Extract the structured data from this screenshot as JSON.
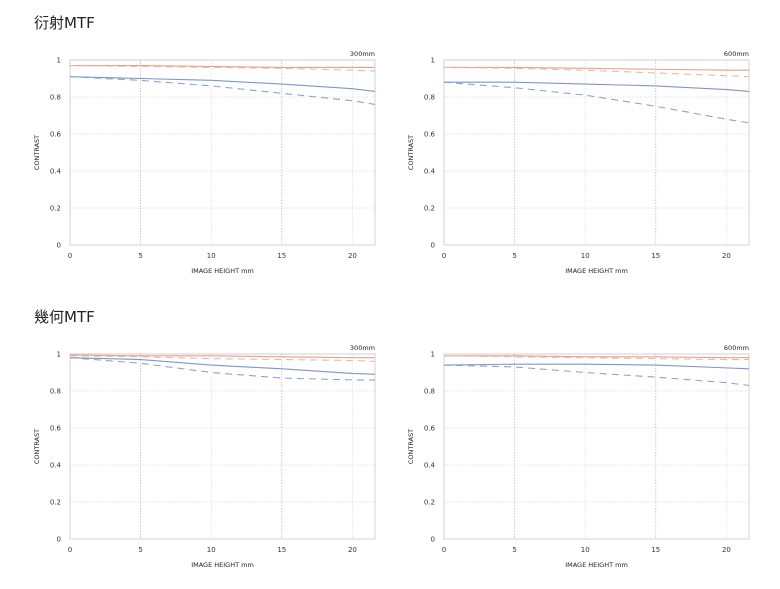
{
  "sections": [
    {
      "title": "衍射MTF"
    },
    {
      "title": "幾何MTF"
    }
  ],
  "chart_data": [
    {
      "type": "line",
      "group": "衍射MTF",
      "corner_label": "300mm",
      "xlabel": "IMAGE HEIGHT  mm",
      "ylabel": "CONTRAST",
      "xlim": [
        0,
        21.6
      ],
      "ylim": [
        0,
        1
      ],
      "xticks": [
        "0",
        "5",
        "10",
        "15",
        "20"
      ],
      "yticks": [
        "0",
        "0.2",
        "0.4",
        "0.6",
        "0.8",
        "1"
      ],
      "series": [
        {
          "color": "#e8a08a",
          "dash": "solid",
          "x": [
            0,
            5,
            10,
            15,
            20,
            21.6
          ],
          "y": [
            0.97,
            0.97,
            0.965,
            0.96,
            0.96,
            0.96
          ]
        },
        {
          "color": "#e8b8a8",
          "dash": "dashed",
          "x": [
            0,
            5,
            10,
            15,
            20,
            21.6
          ],
          "y": [
            0.97,
            0.965,
            0.96,
            0.955,
            0.945,
            0.94
          ]
        },
        {
          "color": "#7f96c8",
          "dash": "solid",
          "x": [
            0,
            5,
            10,
            15,
            20,
            21.6
          ],
          "y": [
            0.91,
            0.9,
            0.89,
            0.87,
            0.845,
            0.83
          ]
        },
        {
          "color": "#8fa3cf",
          "dash": "dashed",
          "x": [
            0,
            5,
            10,
            15,
            20,
            21.6
          ],
          "y": [
            0.91,
            0.89,
            0.86,
            0.82,
            0.78,
            0.76
          ]
        }
      ]
    },
    {
      "type": "line",
      "group": "衍射MTF",
      "corner_label": "600mm",
      "xlabel": "IMAGE HEIGHT  mm",
      "ylabel": "CONTRAST",
      "xlim": [
        0,
        21.6
      ],
      "ylim": [
        0,
        1
      ],
      "xticks": [
        "0",
        "5",
        "10",
        "15",
        "20"
      ],
      "yticks": [
        "0",
        "0.2",
        "0.4",
        "0.6",
        "0.8",
        "1"
      ],
      "series": [
        {
          "color": "#e8a08a",
          "dash": "solid",
          "x": [
            0,
            5,
            10,
            15,
            20,
            21.6
          ],
          "y": [
            0.96,
            0.96,
            0.955,
            0.95,
            0.945,
            0.945
          ]
        },
        {
          "color": "#e8b8a8",
          "dash": "dashed",
          "x": [
            0,
            5,
            10,
            15,
            20,
            21.6
          ],
          "y": [
            0.96,
            0.955,
            0.945,
            0.93,
            0.915,
            0.91
          ]
        },
        {
          "color": "#7f96c8",
          "dash": "solid",
          "x": [
            0,
            5,
            10,
            15,
            20,
            21.6
          ],
          "y": [
            0.88,
            0.88,
            0.87,
            0.86,
            0.84,
            0.83
          ]
        },
        {
          "color": "#8fa3cf",
          "dash": "dashed",
          "x": [
            0,
            5,
            10,
            15,
            20,
            21.6
          ],
          "y": [
            0.88,
            0.85,
            0.81,
            0.75,
            0.68,
            0.66
          ]
        }
      ]
    },
    {
      "type": "line",
      "group": "幾何MTF",
      "corner_label": "300mm",
      "xlabel": "IMAGE HEIGHT  mm",
      "ylabel": "CONTRAST",
      "xlim": [
        0,
        21.6
      ],
      "ylim": [
        0,
        1
      ],
      "xticks": [
        "0",
        "5",
        "10",
        "15",
        "20"
      ],
      "yticks": [
        "0",
        "0.2",
        "0.4",
        "0.6",
        "0.8",
        "1"
      ],
      "series": [
        {
          "color": "#e8a08a",
          "dash": "solid",
          "x": [
            0,
            5,
            10,
            15,
            20,
            21.6
          ],
          "y": [
            0.995,
            0.99,
            0.99,
            0.985,
            0.98,
            0.98
          ]
        },
        {
          "color": "#e8b8a8",
          "dash": "dashed",
          "x": [
            0,
            5,
            10,
            15,
            20,
            21.6
          ],
          "y": [
            0.99,
            0.985,
            0.975,
            0.97,
            0.965,
            0.96
          ]
        },
        {
          "color": "#7f96c8",
          "dash": "solid",
          "x": [
            0,
            5,
            10,
            15,
            20,
            21.6
          ],
          "y": [
            0.98,
            0.97,
            0.94,
            0.92,
            0.895,
            0.89
          ]
        },
        {
          "color": "#8fa3cf",
          "dash": "dashed",
          "x": [
            0,
            5,
            10,
            15,
            20,
            21.6
          ],
          "y": [
            0.98,
            0.95,
            0.9,
            0.87,
            0.86,
            0.86
          ]
        }
      ]
    },
    {
      "type": "line",
      "group": "幾何MTF",
      "corner_label": "600mm",
      "xlabel": "IMAGE HEIGHT  mm",
      "ylabel": "CONTRAST",
      "xlim": [
        0,
        21.6
      ],
      "ylim": [
        0,
        1
      ],
      "xticks": [
        "0",
        "5",
        "10",
        "15",
        "20"
      ],
      "yticks": [
        "0",
        "0.2",
        "0.4",
        "0.6",
        "0.8",
        "1"
      ],
      "series": [
        {
          "color": "#e8a08a",
          "dash": "solid",
          "x": [
            0,
            5,
            10,
            15,
            20,
            21.6
          ],
          "y": [
            0.99,
            0.99,
            0.985,
            0.985,
            0.98,
            0.98
          ]
        },
        {
          "color": "#e8b8a8",
          "dash": "dashed",
          "x": [
            0,
            5,
            10,
            15,
            20,
            21.6
          ],
          "y": [
            0.99,
            0.985,
            0.98,
            0.975,
            0.97,
            0.97
          ]
        },
        {
          "color": "#7f96c8",
          "dash": "solid",
          "x": [
            0,
            5,
            10,
            15,
            20,
            21.6
          ],
          "y": [
            0.94,
            0.945,
            0.945,
            0.94,
            0.925,
            0.92
          ]
        },
        {
          "color": "#8fa3cf",
          "dash": "dashed",
          "x": [
            0,
            5,
            10,
            15,
            20,
            21.6
          ],
          "y": [
            0.94,
            0.93,
            0.9,
            0.875,
            0.845,
            0.83
          ]
        }
      ]
    }
  ]
}
